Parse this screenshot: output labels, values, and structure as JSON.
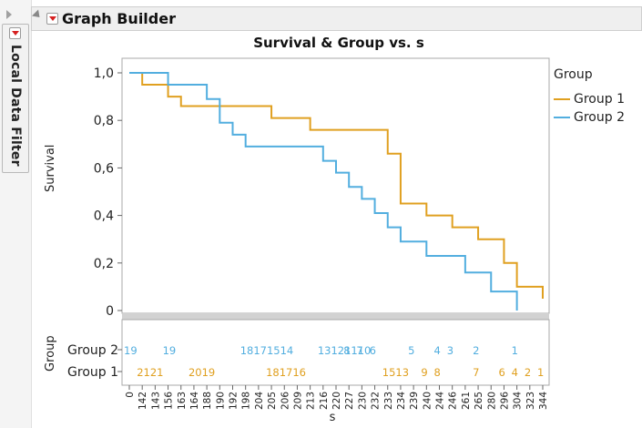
{
  "window": {
    "title": "Graph Builder",
    "local_filter_label": "Local Data Filter"
  },
  "colors": {
    "group1": "#E0A020",
    "group2": "#52AEDF"
  },
  "chart_data": {
    "type": "line",
    "step": true,
    "title": "Survival & Group vs. s",
    "xlabel": "s",
    "ylabel": "Survival",
    "ylim": [
      0,
      1
    ],
    "yticks": [
      "1,0",
      "0,8",
      "0,6",
      "0,4",
      "0,2",
      "0"
    ],
    "ytick_values": [
      1,
      0.8,
      0.6,
      0.4,
      0.2,
      0
    ],
    "grid": false,
    "legend": {
      "title": "Group",
      "position": "right"
    },
    "x_categories": [
      "0",
      "142",
      "143",
      "156",
      "163",
      "164",
      "188",
      "190",
      "192",
      "198",
      "204",
      "205",
      "206",
      "209",
      "213",
      "216",
      "220",
      "227",
      "230",
      "232",
      "233",
      "234",
      "239",
      "240",
      "244",
      "246",
      "261",
      "265",
      "280",
      "296",
      "304",
      "323",
      "344"
    ],
    "series": [
      {
        "name": "Group 1",
        "color_key": "group1",
        "points": [
          [
            0,
            1.0
          ],
          [
            142,
            0.95
          ],
          [
            156,
            0.9
          ],
          [
            163,
            0.86
          ],
          [
            198,
            0.86
          ],
          [
            205,
            0.81
          ],
          [
            213,
            0.76
          ],
          [
            232,
            0.76
          ],
          [
            233,
            0.66
          ],
          [
            234,
            0.45
          ],
          [
            239,
            0.45
          ],
          [
            240,
            0.4
          ],
          [
            246,
            0.35
          ],
          [
            261,
            0.35
          ],
          [
            265,
            0.3
          ],
          [
            280,
            0.3
          ],
          [
            296,
            0.2
          ],
          [
            304,
            0.1
          ],
          [
            323,
            0.1
          ],
          [
            344,
            0.05
          ]
        ]
      },
      {
        "name": "Group 2",
        "color_key": "group2",
        "points": [
          [
            0,
            1.0
          ],
          [
            143,
            1.0
          ],
          [
            156,
            0.95
          ],
          [
            188,
            0.89
          ],
          [
            190,
            0.79
          ],
          [
            192,
            0.74
          ],
          [
            198,
            0.69
          ],
          [
            206,
            0.69
          ],
          [
            216,
            0.63
          ],
          [
            220,
            0.58
          ],
          [
            227,
            0.52
          ],
          [
            230,
            0.47
          ],
          [
            232,
            0.41
          ],
          [
            233,
            0.35
          ],
          [
            234,
            0.29
          ],
          [
            240,
            0.23
          ],
          [
            261,
            0.16
          ],
          [
            265,
            0.16
          ],
          [
            280,
            0.08
          ],
          [
            304,
            0.08
          ],
          [
            304,
            0.0
          ]
        ]
      }
    ],
    "group_strip": {
      "rows": [
        {
          "name": "Group 2",
          "color_key": "group2",
          "labels": [
            {
              "text": "19",
              "at": "0"
            },
            {
              "text": "19",
              "at": "156"
            },
            {
              "text": "18171514",
              "at": "198"
            },
            {
              "text": "13121110",
              "at": "216"
            },
            {
              "text": "8",
              "at": "227"
            },
            {
              "text": "7",
              "at": "230"
            },
            {
              "text": "6",
              "at": "232"
            },
            {
              "text": "5",
              "at": "239"
            },
            {
              "text": "4",
              "at": "244"
            },
            {
              "text": "3",
              "at": "246"
            },
            {
              "text": "2",
              "at": "265"
            },
            {
              "text": "1",
              "at": "304"
            }
          ]
        },
        {
          "name": "Group 1",
          "color_key": "group1",
          "labels": [
            {
              "text": "2121",
              "at": "142"
            },
            {
              "text": "2019",
              "at": "164"
            },
            {
              "text": "181716",
              "at": "205"
            },
            {
              "text": "1513",
              "at": "233"
            },
            {
              "text": "9",
              "at": "240"
            },
            {
              "text": "8",
              "at": "244"
            },
            {
              "text": "7",
              "at": "265"
            },
            {
              "text": "6",
              "at": "296"
            },
            {
              "text": "4",
              "at": "304"
            },
            {
              "text": "2",
              "at": "323"
            },
            {
              "text": "1",
              "at": "344"
            }
          ]
        }
      ]
    }
  }
}
